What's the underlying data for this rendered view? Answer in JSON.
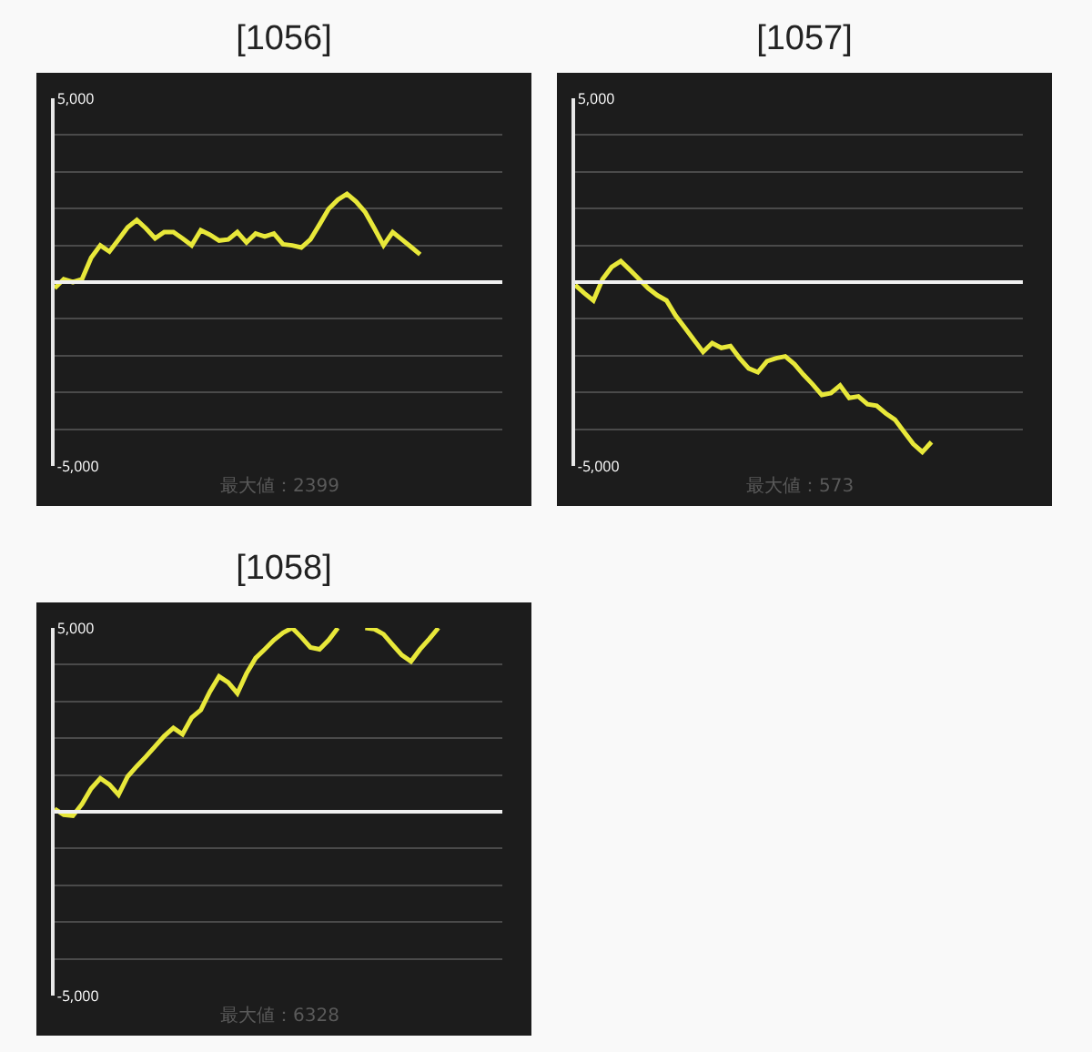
{
  "chart_data": [
    {
      "type": "line",
      "title": "[1056]",
      "categories": [
        null,
        null,
        null,
        null,
        null,
        null,
        null,
        null,
        null,
        null,
        null,
        null,
        null,
        null,
        null,
        null,
        null,
        null,
        null,
        null,
        null,
        null,
        null,
        null,
        null,
        null,
        null,
        null,
        null,
        null,
        null,
        null,
        null,
        null,
        null,
        null,
        null,
        null,
        null,
        null,
        null,
        null,
        null,
        null,
        null,
        null,
        null,
        null,
        null,
        null
      ],
      "series": [
        {
          "color": "#e8e83a",
          "values": [
            -170,
            80,
            0,
            80,
            660,
            1000,
            830,
            1160,
            1490,
            1690,
            1460,
            1190,
            1360,
            1360,
            1190,
            1000,
            1410,
            1290,
            1130,
            1160,
            1360,
            1080,
            1320,
            1240,
            1320,
            1030,
            1000,
            940,
            1160,
            1570,
            1990,
            2240,
            2400,
            2190,
            1900,
            1460,
            1000,
            1360,
            1160,
            960,
            750,
            null,
            null,
            null,
            null,
            null,
            null,
            null,
            null,
            null
          ]
        }
      ],
      "ylim": [
        -5000,
        5000
      ],
      "yticks": [
        {
          "value": -5000,
          "label": "-5,000"
        },
        {
          "value": -4000,
          "label": null
        },
        {
          "value": -3000,
          "label": null
        },
        {
          "value": -2000,
          "label": null
        },
        {
          "value": -1000,
          "label": null
        },
        {
          "value": 0,
          "label": null
        },
        {
          "value": 1000,
          "label": null
        },
        {
          "value": 2000,
          "label": null
        },
        {
          "value": 3000,
          "label": null
        },
        {
          "value": 4000,
          "label": null
        },
        {
          "value": 5000,
          "label": "5,000"
        }
      ],
      "ref_lines": [
        {
          "axis": "y",
          "value": 0,
          "color": "#f0f0f0"
        }
      ],
      "annotations": [
        "最大値：2399"
      ],
      "grid": "y",
      "tick_labels": "y",
      "marker": "none",
      "line_style": "solid"
    },
    {
      "type": "line",
      "title": "[1057]",
      "categories": [
        null,
        null,
        null,
        null,
        null,
        null,
        null,
        null,
        null,
        null,
        null,
        null,
        null,
        null,
        null,
        null,
        null,
        null,
        null,
        null,
        null,
        null,
        null,
        null,
        null,
        null,
        null,
        null,
        null,
        null,
        null,
        null,
        null,
        null,
        null,
        null,
        null,
        null,
        null,
        null,
        null,
        null,
        null,
        null,
        null,
        null,
        null,
        null,
        null,
        null
      ],
      "series": [
        {
          "color": "#e8e83a",
          "values": [
            -80,
            -300,
            -500,
            80,
            410,
            570,
            330,
            80,
            -170,
            -360,
            -500,
            -910,
            -1240,
            -1570,
            -1900,
            -1660,
            -1790,
            -1740,
            -2070,
            -2350,
            -2450,
            -2150,
            -2070,
            -2020,
            -2230,
            -2520,
            -2780,
            -3070,
            -3020,
            -2810,
            -3150,
            -3110,
            -3320,
            -3360,
            -3570,
            -3740,
            -4070,
            -4400,
            -4620,
            -4350,
            null,
            null,
            null,
            null,
            null,
            null,
            null,
            null,
            null,
            null
          ]
        }
      ],
      "ylim": [
        -5000,
        5000
      ],
      "yticks": [
        {
          "value": -5000,
          "label": "-5,000"
        },
        {
          "value": -4000,
          "label": null
        },
        {
          "value": -3000,
          "label": null
        },
        {
          "value": -2000,
          "label": null
        },
        {
          "value": -1000,
          "label": null
        },
        {
          "value": 0,
          "label": null
        },
        {
          "value": 1000,
          "label": null
        },
        {
          "value": 2000,
          "label": null
        },
        {
          "value": 3000,
          "label": null
        },
        {
          "value": 4000,
          "label": null
        },
        {
          "value": 5000,
          "label": "5,000"
        }
      ],
      "ref_lines": [
        {
          "axis": "y",
          "value": 0,
          "color": "#f0f0f0"
        }
      ],
      "annotations": [
        "最大値：573"
      ],
      "grid": "y",
      "tick_labels": "y",
      "marker": "none",
      "line_style": "solid"
    },
    {
      "type": "line",
      "title": "[1058]",
      "categories": [
        null,
        null,
        null,
        null,
        null,
        null,
        null,
        null,
        null,
        null,
        null,
        null,
        null,
        null,
        null,
        null,
        null,
        null,
        null,
        null,
        null,
        null,
        null,
        null,
        null,
        null,
        null,
        null,
        null,
        null,
        null,
        null,
        null,
        null,
        null,
        null,
        null,
        null,
        null,
        null,
        null,
        null,
        null,
        null,
        null,
        null,
        null,
        null,
        null,
        null
      ],
      "series": [
        {
          "color": "#e8e83a",
          "values": [
            80,
            -80,
            -110,
            210,
            630,
            910,
            740,
            460,
            960,
            1240,
            1500,
            1780,
            2060,
            2280,
            2110,
            2560,
            2770,
            3270,
            3680,
            3520,
            3220,
            3760,
            4180,
            4420,
            4670,
            4870,
            5000,
            4750,
            4470,
            4420,
            4670,
            5000,
            null,
            null,
            5000,
            4970,
            4830,
            4540,
            4260,
            4090,
            4420,
            4700,
            5000,
            null,
            null,
            null,
            null,
            null,
            null,
            null
          ]
        }
      ],
      "ylim": [
        -5000,
        5000
      ],
      "yticks": [
        {
          "value": -5000,
          "label": "-5,000"
        },
        {
          "value": -4000,
          "label": null
        },
        {
          "value": -3000,
          "label": null
        },
        {
          "value": -2000,
          "label": null
        },
        {
          "value": -1000,
          "label": null
        },
        {
          "value": 0,
          "label": null
        },
        {
          "value": 1000,
          "label": null
        },
        {
          "value": 2000,
          "label": null
        },
        {
          "value": 3000,
          "label": null
        },
        {
          "value": 4000,
          "label": null
        },
        {
          "value": 5000,
          "label": "5,000"
        }
      ],
      "ref_lines": [
        {
          "axis": "y",
          "value": 0,
          "color": "#f0f0f0"
        }
      ],
      "annotations": [
        "最大値：6328"
      ],
      "grid": "y",
      "tick_labels": "y",
      "marker": "none",
      "line_style": "solid"
    }
  ]
}
